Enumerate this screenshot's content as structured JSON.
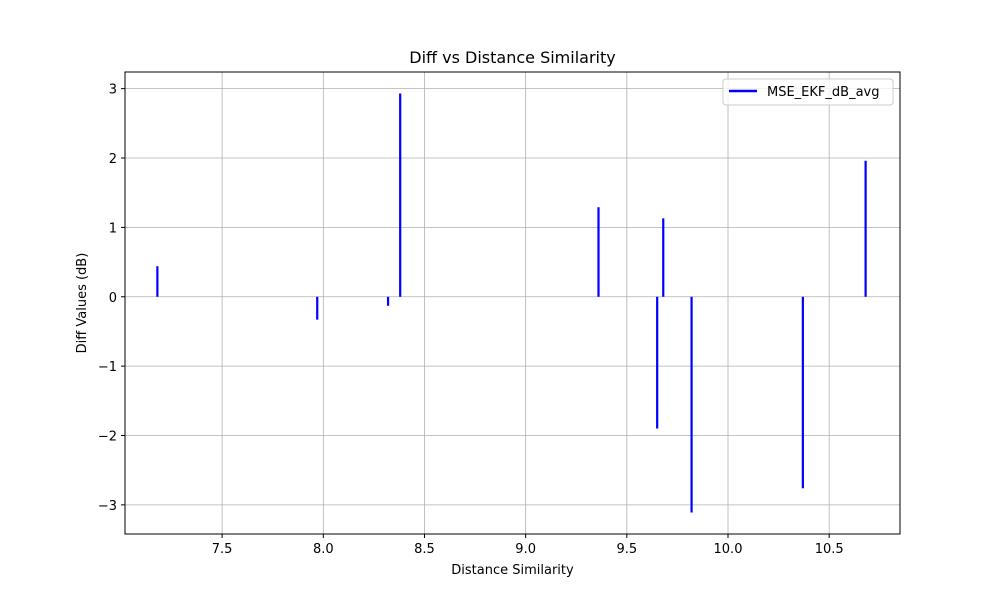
{
  "chart_data": {
    "type": "stem",
    "title": "Diff vs Distance Similarity",
    "xlabel": "Distance Similarity",
    "ylabel": "Diff Values (dB)",
    "xlim": [
      7.02,
      10.85
    ],
    "ylim": [
      -3.42,
      3.24
    ],
    "xticks": [
      7.5,
      8.0,
      8.5,
      9.0,
      9.5,
      10.0,
      10.5
    ],
    "xtick_labels": [
      "7.5",
      "8.0",
      "8.5",
      "9.0",
      "9.5",
      "10.0",
      "10.5"
    ],
    "yticks": [
      -3,
      -2,
      -1,
      0,
      1,
      2,
      3
    ],
    "ytick_labels": [
      "−3",
      "−2",
      "−1",
      "0",
      "1",
      "2",
      "3"
    ],
    "grid": true,
    "legend_position": "upper-right",
    "series": [
      {
        "name": "MSE_EKF_dB_avg",
        "color": "#0000ff",
        "x": [
          7.18,
          7.97,
          8.32,
          8.38,
          9.36,
          9.65,
          9.68,
          9.82,
          10.37,
          10.68
        ],
        "y": [
          0.44,
          -0.33,
          -0.13,
          2.93,
          1.29,
          -1.9,
          1.13,
          -3.11,
          -2.76,
          1.96
        ]
      }
    ]
  }
}
